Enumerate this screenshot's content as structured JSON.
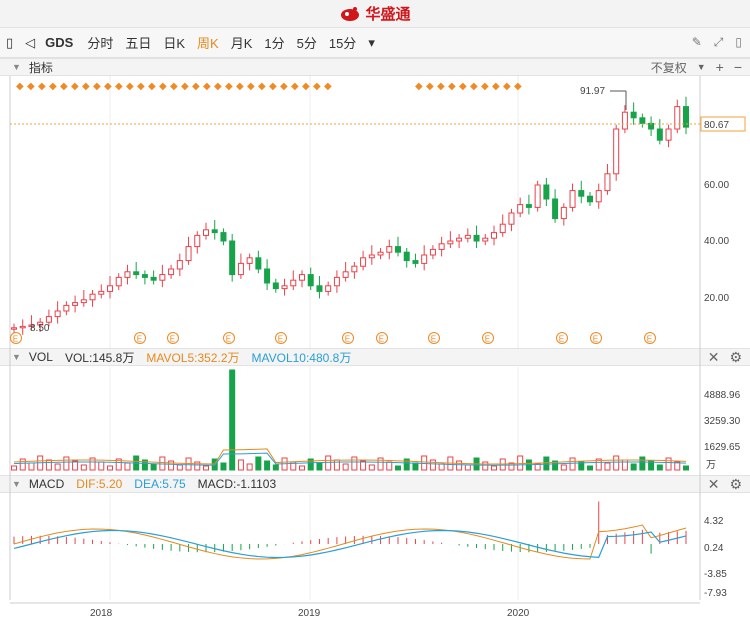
{
  "app": {
    "brand": "华盛通"
  },
  "toolbar": {
    "symbol": "GDS",
    "periods": [
      "分时",
      "五日",
      "日K",
      "周K",
      "月K",
      "1分",
      "5分",
      "15分"
    ],
    "active_period": "周K"
  },
  "indicator_header": {
    "label": "指标",
    "adjust": "不复权"
  },
  "main": {
    "y_ticks": [
      "80.67",
      "60.00",
      "40.00",
      "20.00"
    ],
    "high_label": "91.97",
    "low_label": "8.50",
    "current_price": "80.67",
    "earnings_marker": "E",
    "colors": {
      "up": "#e8424a",
      "down": "#17a34a",
      "price_line": "#f2a33a",
      "event": "#f08a24"
    }
  },
  "vol": {
    "name": "VOL",
    "vol_label": "VOL:145.8万",
    "ma5_label": "MAVOL5:352.2万",
    "ma10_label": "MAVOL10:480.8万",
    "y_ticks": [
      "4888.96",
      "3259.30",
      "1629.65",
      "万"
    ],
    "colors": {
      "ma5": "#e58a1f",
      "ma10": "#2a9fd6"
    }
  },
  "macd": {
    "name": "MACD",
    "dif_label": "DIF:5.20",
    "dea_label": "DEA:5.75",
    "macd_label": "MACD:-1.1103",
    "y_ticks": [
      "4.32",
      "0.24",
      "-3.85",
      "-7.93"
    ],
    "colors": {
      "dif": "#e58a1f",
      "dea": "#2a9fd6"
    }
  },
  "x_axis": {
    "labels": [
      "2018",
      "2019",
      "2020"
    ]
  },
  "chart_data": {
    "type": "candlestick",
    "interval": "weekly",
    "x_labels": [
      "2018",
      "2019",
      "2020"
    ],
    "price_axis_ticks": [
      20,
      40,
      60,
      80.67
    ],
    "close_approx": [
      9,
      9.5,
      10,
      11,
      13,
      15,
      17,
      18,
      19,
      21,
      22,
      24,
      27,
      29,
      28,
      27,
      26,
      28,
      30,
      33,
      38,
      42,
      44,
      43,
      40,
      28,
      32,
      34,
      30,
      25,
      23,
      24,
      26,
      28,
      24,
      22,
      24,
      27,
      29,
      31,
      34,
      35,
      36,
      38,
      36,
      33,
      32,
      35,
      37,
      39,
      40,
      41,
      42,
      40,
      41,
      43,
      46,
      50,
      53,
      52,
      60,
      55,
      48,
      52,
      58,
      56,
      54,
      58,
      64,
      80,
      86,
      84,
      82,
      80,
      76,
      80,
      88,
      80.67
    ],
    "high": 91.97,
    "low": 8.5,
    "last": 80.67
  }
}
